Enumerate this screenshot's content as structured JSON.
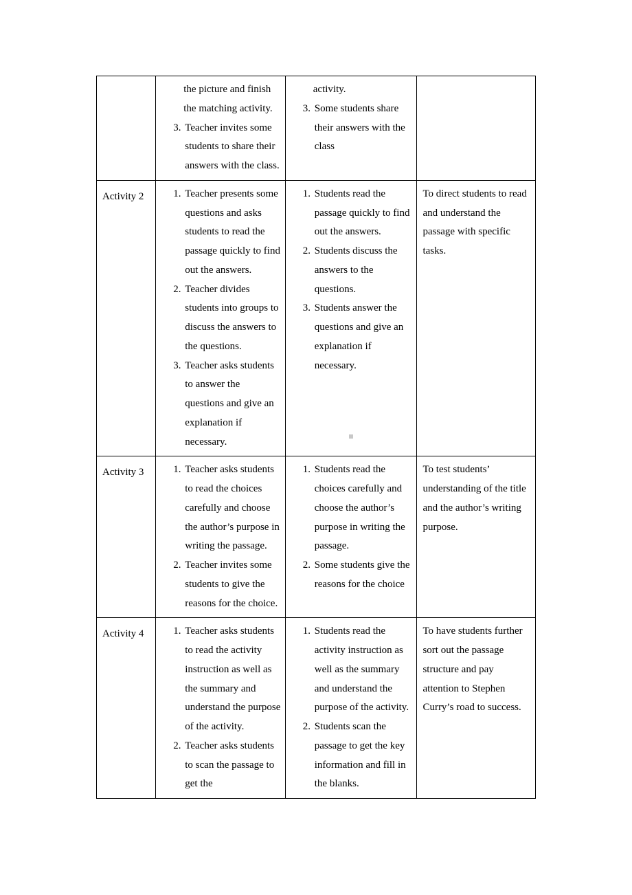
{
  "font": {
    "family": "Times New Roman",
    "size_pt": 15,
    "line_height": 1.85
  },
  "colors": {
    "text": "#000000",
    "border": "#000000",
    "background": "#ffffff",
    "marker": "#c8c8c8"
  },
  "column_widths_pct": [
    13.5,
    29.5,
    30,
    27
  ],
  "rows": [
    {
      "label": "",
      "teacher": [
        "the picture and finish the matching activity.",
        "Teacher invites some students to share their answers with the class."
      ],
      "teacher_start": 3,
      "prepend_teacher": "",
      "students": [
        "activity.",
        "Some students share their answers with the class"
      ],
      "students_start": 3,
      "prepend_students": "",
      "purpose": ""
    },
    {
      "label": "Activity 2",
      "teacher": [
        "Teacher presents some questions and asks students to read the passage quickly to find out the answers.",
        "Teacher divides students into groups to discuss the answers to the questions.",
        "Teacher asks students to answer the questions and give an explanation if necessary."
      ],
      "teacher_start": 1,
      "students": [
        "Students read the passage quickly to find out the answers.",
        "Students discuss the answers to the questions.",
        "Students answer the questions and give an explanation if necessary."
      ],
      "students_start": 1,
      "purpose": "To direct students to read and understand the passage with specific tasks.",
      "show_marker": true
    },
    {
      "label": "Activity 3",
      "teacher": [
        "Teacher asks students to read the choices carefully and choose the author’s purpose in writing the passage.",
        "Teacher invites some students to give the reasons for the choice."
      ],
      "teacher_start": 1,
      "students": [
        "Students read the choices carefully and choose the author’s purpose in writing the passage.",
        "Some students give the reasons for the choice"
      ],
      "students_start": 1,
      "purpose": "To test students’ understanding of the title and the author’s writing purpose."
    },
    {
      "label": "Activity 4",
      "teacher": [
        "Teacher asks students to read the activity instruction as well as the summary and understand the purpose of the activity.",
        "Teacher asks students to scan the passage to get the"
      ],
      "teacher_start": 1,
      "students": [
        "Students read the activity instruction as well as the summary and understand the purpose of the activity.",
        "Students scan the passage to get the key information and fill in the blanks."
      ],
      "students_start": 1,
      "purpose": "To have students further sort out the passage structure and pay attention to Stephen Curry’s road to success."
    }
  ]
}
